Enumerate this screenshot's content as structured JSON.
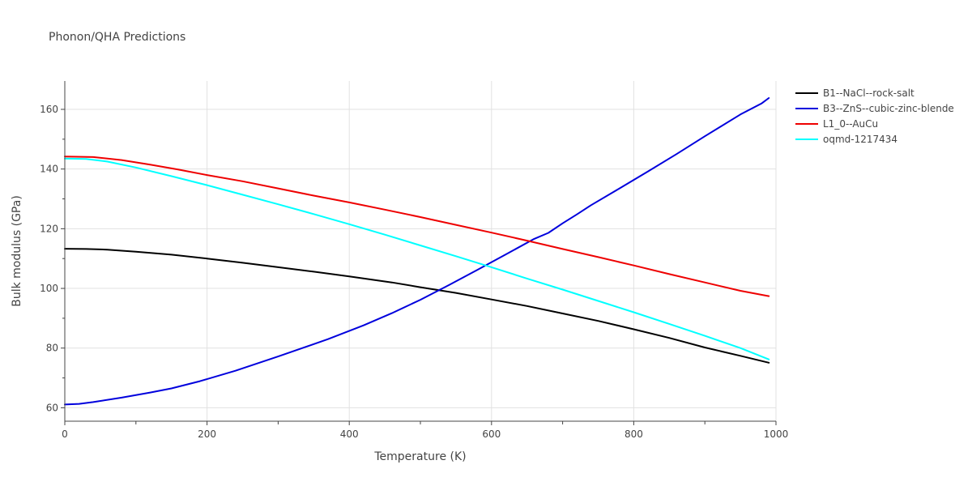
{
  "chart_data": {
    "type": "line",
    "title": "Phonon/QHA Predictions",
    "xlabel": "Temperature (K)",
    "ylabel": "Bulk modulus (GPa)",
    "xlim": [
      0,
      1000
    ],
    "ylim": [
      55.5,
      169.5
    ],
    "xticks": [
      0,
      200,
      400,
      600,
      800,
      1000
    ],
    "yticks": [
      60,
      80,
      100,
      120,
      140,
      160
    ],
    "grid": true,
    "legend_position": "top-right",
    "series": [
      {
        "name": "B1--NaCl--rock-salt",
        "color": "#000000",
        "x": [
          0,
          30,
          60,
          100,
          150,
          200,
          250,
          300,
          350,
          400,
          460,
          500,
          550,
          600,
          650,
          700,
          750,
          800,
          850,
          900,
          950,
          990
        ],
        "y": [
          113.3,
          113.2,
          113.0,
          112.3,
          111.3,
          110.0,
          108.6,
          107.1,
          105.6,
          104.0,
          102.0,
          100.4,
          98.5,
          96.3,
          94.1,
          91.6,
          89.1,
          86.3,
          83.4,
          80.2,
          77.4,
          75.1
        ]
      },
      {
        "name": "B3--ZnS--cubic-zinc-blende",
        "color": "#0000dd",
        "x": [
          0,
          20,
          40,
          80,
          120,
          150,
          190,
          240,
          300,
          370,
          420,
          460,
          500,
          540,
          580,
          620,
          660,
          680,
          700,
          720,
          740,
          780,
          820,
          860,
          900,
          950,
          980,
          990
        ],
        "y": [
          61.1,
          61.3,
          61.9,
          63.4,
          65.1,
          66.5,
          68.9,
          72.4,
          77.2,
          83.0,
          87.6,
          91.7,
          96.2,
          101.1,
          106.2,
          111.4,
          116.6,
          118.6,
          121.8,
          124.8,
          127.9,
          133.5,
          139.2,
          145.0,
          151.0,
          158.3,
          162.0,
          163.8
        ]
      },
      {
        "name": "L1_0--AuCu",
        "color": "#ee0000",
        "x": [
          0,
          40,
          80,
          120,
          160,
          200,
          250,
          300,
          350,
          400,
          450,
          500,
          550,
          600,
          650,
          700,
          750,
          800,
          850,
          900,
          950,
          990
        ],
        "y": [
          144.2,
          144.0,
          143.0,
          141.5,
          139.8,
          138.0,
          135.9,
          133.5,
          131.1,
          128.8,
          126.4,
          123.9,
          121.3,
          118.7,
          116.0,
          113.2,
          110.5,
          107.7,
          104.8,
          102.0,
          99.2,
          97.4
        ]
      },
      {
        "name": "oqmd-1217434",
        "color": "#00ffff",
        "x": [
          0,
          30,
          60,
          100,
          150,
          200,
          250,
          300,
          350,
          400,
          450,
          500,
          550,
          600,
          650,
          700,
          750,
          800,
          850,
          900,
          950,
          990
        ],
        "y": [
          143.5,
          143.4,
          142.5,
          140.5,
          137.6,
          134.6,
          131.4,
          128.2,
          124.9,
          121.5,
          118.0,
          114.4,
          110.8,
          107.1,
          103.3,
          99.6,
          95.8,
          92.0,
          88.1,
          84.1,
          80.0,
          76.2
        ]
      }
    ]
  }
}
